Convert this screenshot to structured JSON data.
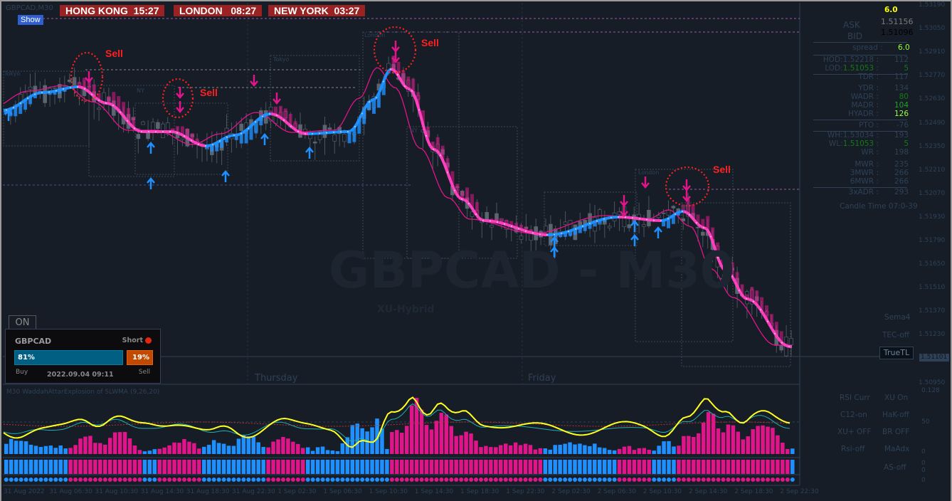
{
  "chart": {
    "symbol_label": "GBPCAD,M30",
    "show_button": "Show",
    "watermark": "GBPCAD - M30",
    "watermark_sub": "XU-Hybrid"
  },
  "clocks": [
    {
      "city": "HONG KONG",
      "time": "15:27"
    },
    {
      "city": "LONDON",
      "time": "08:27"
    },
    {
      "city": "NEW YORK",
      "time": "03:27"
    }
  ],
  "signals": {
    "sell_label": "Sell",
    "session_labels": [
      "Tokyo",
      "NY",
      "Tokyo",
      "London",
      "NY",
      "London",
      "NY"
    ]
  },
  "day_labels": [
    "Thursday",
    "Friday"
  ],
  "price_axis": [
    "1.53190",
    "1.53050",
    "1.52910",
    "1.52770",
    "1.52630",
    "1.52490",
    "1.52350",
    "1.52210",
    "1.52070",
    "1.51930",
    "1.51790",
    "1.51650",
    "1.51510",
    "1.51370",
    "1.51230",
    "1.50950"
  ],
  "current_price": "1.51101",
  "info_panel": {
    "top_value": "6.0",
    "ask_label": "ASK",
    "ask": "1.51156",
    "bid_label": "BID",
    "bid": "1.51096",
    "spread_label": "spread :",
    "spread": "6.0",
    "rows": [
      {
        "label": "HOD:",
        "level": "1.52218",
        "value": "112",
        "color": "#2e4157",
        "level_color": "#2e4157"
      },
      {
        "label": "LOD:",
        "level": "1.51053",
        "value": "5",
        "color": "#137a13",
        "level_color": "#137a13"
      },
      {
        "label": "TDR",
        "level": "",
        "value": "117",
        "color": "#2e4157"
      },
      {
        "label": "YDR",
        "level": "",
        "value": "134",
        "color": "#2e4157"
      },
      {
        "label": "WADR",
        "level": "",
        "value": "80",
        "color": "#137a13"
      },
      {
        "label": "MADR",
        "level": "",
        "value": "104",
        "color": "#1ea51e"
      },
      {
        "label": "HYADR",
        "level": "",
        "value": "126",
        "color": "#9cff3c"
      },
      {
        "label": "PTO",
        "level": "",
        "value": "-76",
        "color": "#2e4157"
      },
      {
        "label": "WH:",
        "level": "1.53034",
        "value": "193",
        "color": "#2e4157",
        "level_color": "#2e4157"
      },
      {
        "label": "WL:",
        "level": "1.51053",
        "value": "5",
        "color": "#137a13",
        "level_color": "#137a13"
      },
      {
        "label": "WR",
        "level": "",
        "value": "198",
        "color": "#2e4157"
      },
      {
        "label": "MWR",
        "level": "",
        "value": "235",
        "color": "#2e4157"
      },
      {
        "label": "3MWR",
        "level": "",
        "value": "266",
        "color": "#2e4157"
      },
      {
        "label": "6MWR",
        "level": "",
        "value": "266",
        "color": "#2e4157"
      },
      {
        "label": "3xADR",
        "level": "",
        "value": "293",
        "color": "#2e4157"
      }
    ],
    "candle_time": "Candle Time 07:0-39"
  },
  "right_labels": {
    "sema": "Sema4",
    "tec": "TEC-off",
    "truetl": "TrueTL"
  },
  "sentiment": {
    "on_button": "ON",
    "symbol": "GBPCAD",
    "direction": "Short",
    "buy_pct": 81,
    "sell_pct": 19,
    "buy_text": "81%",
    "sell_text": "19%",
    "buy_label": "Buy",
    "sell_label": "Sell",
    "timestamp": "2022.09.04 09:11"
  },
  "indicator": {
    "title": "M30 WaddahAttarExplosion of SLWMA (9,26,20)",
    "axis": [
      "0.128",
      "50",
      "0"
    ],
    "sub_axis": [
      "0",
      "0",
      "0"
    ],
    "buttons": [
      "RSI Curr",
      "XU On",
      "C12-on",
      "HaK-off",
      "XU+ OFF",
      "BR OFF",
      "Rsi-off",
      "MaAdx",
      "AS-off"
    ]
  },
  "time_axis": [
    "31 Aug 2022",
    "31 Aug 06:30",
    "31 Aug 10:30",
    "31 Aug 14:30",
    "31 Aug 18:30",
    "31 Aug 22:30",
    "1 Sep 02:30",
    "1 Sep 06:30",
    "1 Sep 10:30",
    "1 Sep 14:30",
    "1 Sep 18:30",
    "1 Sep 22:30",
    "2 Sep 02:30",
    "2 Sep 06:30",
    "2 Sep 10:30",
    "2 Sep 14:30",
    "2 Sep 18:30",
    "2 Sep 22:30"
  ],
  "colors": {
    "bull": "#1e90ff",
    "bear": "#e0158a",
    "clock_bg": "#9b2222",
    "sell": "#ff2020"
  }
}
